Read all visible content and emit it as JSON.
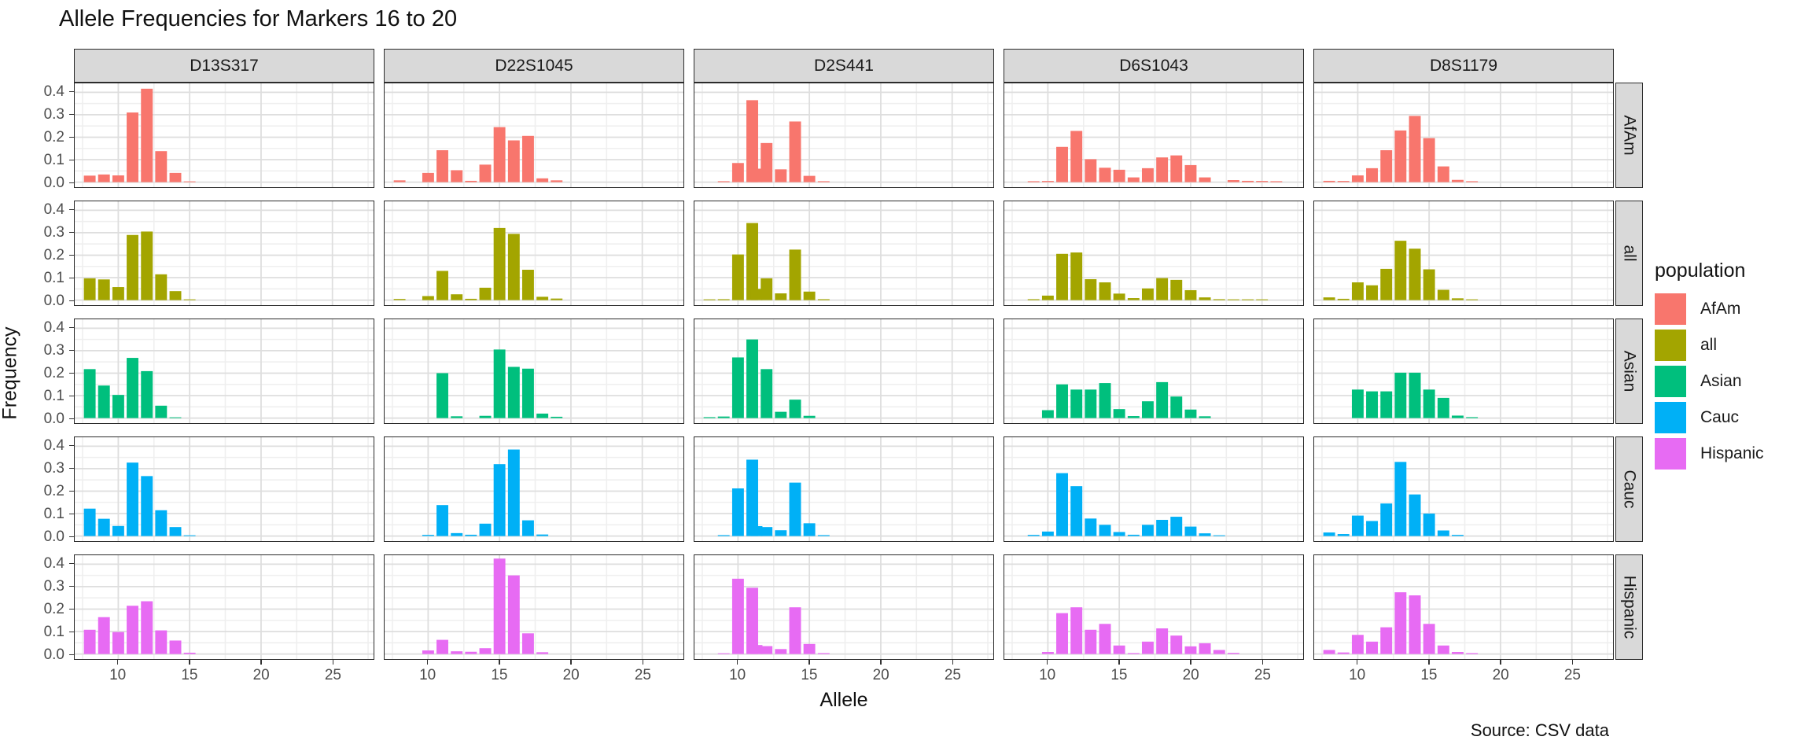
{
  "title": "Allele Frequencies for Markers 16 to 20",
  "source_note": "Source: CSV data",
  "axes": {
    "x_label": "Allele",
    "y_label": "Frequency",
    "x_ticks": [
      10,
      15,
      20,
      25
    ],
    "y_ticks": [
      "0.0",
      "0.1",
      "0.2",
      "0.3",
      "0.4"
    ],
    "y_tick_values": [
      0.0,
      0.1,
      0.2,
      0.3,
      0.4
    ]
  },
  "legend": {
    "title": "population",
    "entries": [
      {
        "label": "AfAm",
        "color": "#F8766D"
      },
      {
        "label": "all",
        "color": "#A3A500"
      },
      {
        "label": "Asian",
        "color": "#00BF7D"
      },
      {
        "label": "Cauc",
        "color": "#00B0F6"
      },
      {
        "label": "Hispanic",
        "color": "#E76BF3"
      }
    ]
  },
  "facets": {
    "columns": [
      "D13S317",
      "D22S1045",
      "D2S441",
      "D6S1043",
      "D8S1179"
    ],
    "rows": [
      "AfAm",
      "all",
      "Asian",
      "Cauc",
      "Hispanic"
    ]
  },
  "chart_data": {
    "type": "bar",
    "title": "Allele Frequencies for Markers 16 to 20",
    "xlabel": "Allele",
    "ylabel": "Frequency",
    "facet_columns_variable": "marker",
    "facet_rows_variable": "population",
    "x_domain": [
      6.95,
      27.88
    ],
    "ylim": [
      0,
      0.437
    ],
    "grid": "on",
    "legend_position": "right",
    "series": [
      {
        "marker": "D13S317",
        "population": "AfAm",
        "alleles": [
          8,
          9,
          10,
          11,
          12,
          13,
          14,
          15
        ],
        "frequencies": [
          0.029,
          0.034,
          0.03,
          0.31,
          0.416,
          0.138,
          0.041,
          0.003
        ]
      },
      {
        "marker": "D22S1045",
        "population": "AfAm",
        "alleles": [
          8,
          10,
          11,
          12,
          13,
          14,
          15,
          16,
          17,
          18,
          19
        ],
        "frequencies": [
          0.008,
          0.041,
          0.142,
          0.053,
          0.006,
          0.078,
          0.245,
          0.186,
          0.206,
          0.017,
          0.008
        ]
      },
      {
        "marker": "D2S441",
        "population": "AfAm",
        "alleles": [
          9,
          10,
          11,
          11.3,
          12,
          13,
          14,
          15,
          16
        ],
        "frequencies": [
          0.004,
          0.085,
          0.365,
          0.06,
          0.174,
          0.057,
          0.27,
          0.028,
          0.004
        ]
      },
      {
        "marker": "D6S1043",
        "population": "AfAm",
        "alleles": [
          9,
          10,
          11,
          12,
          13,
          14,
          15,
          16,
          17,
          18,
          19,
          20,
          21,
          23,
          24,
          25,
          26
        ],
        "frequencies": [
          0.004,
          0.005,
          0.157,
          0.228,
          0.102,
          0.064,
          0.055,
          0.021,
          0.062,
          0.11,
          0.119,
          0.076,
          0.021,
          0.009,
          0.006,
          0.005,
          0.004
        ]
      },
      {
        "marker": "D8S1179",
        "population": "AfAm",
        "alleles": [
          8,
          9,
          10,
          11,
          12,
          13,
          14,
          15,
          16,
          17,
          18
        ],
        "frequencies": [
          0.006,
          0.005,
          0.03,
          0.062,
          0.142,
          0.23,
          0.295,
          0.196,
          0.07,
          0.01,
          0.004
        ]
      },
      {
        "marker": "D13S317",
        "population": "all",
        "alleles": [
          8,
          9,
          10,
          11,
          12,
          13,
          14,
          15
        ],
        "frequencies": [
          0.097,
          0.092,
          0.058,
          0.29,
          0.305,
          0.115,
          0.04,
          0.003
        ]
      },
      {
        "marker": "D22S1045",
        "population": "all",
        "alleles": [
          8,
          10,
          11,
          12,
          13,
          14,
          15,
          16,
          17,
          18,
          19
        ],
        "frequencies": [
          0.005,
          0.018,
          0.13,
          0.026,
          0.006,
          0.055,
          0.321,
          0.295,
          0.135,
          0.015,
          0.007
        ]
      },
      {
        "marker": "D2S441",
        "population": "all",
        "alleles": [
          8,
          9,
          10,
          11,
          11.3,
          12,
          13,
          14,
          15,
          16
        ],
        "frequencies": [
          0.003,
          0.004,
          0.203,
          0.343,
          0.05,
          0.097,
          0.03,
          0.225,
          0.038,
          0.004
        ]
      },
      {
        "marker": "D6S1043",
        "population": "all",
        "alleles": [
          9,
          10,
          11,
          12,
          13,
          14,
          15,
          16,
          17,
          18,
          19,
          20,
          21,
          22,
          23,
          24,
          25
        ],
        "frequencies": [
          0.004,
          0.02,
          0.206,
          0.212,
          0.093,
          0.079,
          0.029,
          0.009,
          0.052,
          0.098,
          0.09,
          0.044,
          0.012,
          0.004,
          0.003,
          0.003,
          0.002
        ]
      },
      {
        "marker": "D8S1179",
        "population": "all",
        "alleles": [
          8,
          9,
          10,
          11,
          12,
          13,
          14,
          15,
          16,
          17,
          18
        ],
        "frequencies": [
          0.012,
          0.006,
          0.079,
          0.066,
          0.139,
          0.264,
          0.229,
          0.137,
          0.046,
          0.008,
          0.003
        ]
      },
      {
        "marker": "D13S317",
        "population": "Asian",
        "alleles": [
          8,
          9,
          10,
          11,
          12,
          13,
          14
        ],
        "frequencies": [
          0.218,
          0.145,
          0.103,
          0.268,
          0.209,
          0.055,
          0.003
        ]
      },
      {
        "marker": "D22S1045",
        "population": "Asian",
        "alleles": [
          11,
          12,
          14,
          15,
          16,
          17,
          18,
          19
        ],
        "frequencies": [
          0.2,
          0.008,
          0.01,
          0.305,
          0.228,
          0.22,
          0.02,
          0.006
        ]
      },
      {
        "marker": "D2S441",
        "population": "Asian",
        "alleles": [
          8,
          9,
          10,
          11,
          12,
          13,
          14,
          15
        ],
        "frequencies": [
          0.004,
          0.007,
          0.27,
          0.35,
          0.218,
          0.028,
          0.082,
          0.01
        ]
      },
      {
        "marker": "D6S1043",
        "population": "Asian",
        "alleles": [
          10,
          11,
          12,
          13,
          14,
          15,
          16,
          17,
          18,
          19,
          20,
          21
        ],
        "frequencies": [
          0.035,
          0.15,
          0.127,
          0.127,
          0.156,
          0.04,
          0.009,
          0.075,
          0.16,
          0.096,
          0.038,
          0.008
        ]
      },
      {
        "marker": "D8S1179",
        "population": "Asian",
        "alleles": [
          10,
          11,
          12,
          13,
          14,
          15,
          16,
          17,
          18
        ],
        "frequencies": [
          0.127,
          0.119,
          0.119,
          0.202,
          0.202,
          0.127,
          0.09,
          0.011,
          0.004
        ]
      },
      {
        "marker": "D13S317",
        "population": "Cauc",
        "alleles": [
          8,
          9,
          10,
          11,
          12,
          13,
          14,
          15
        ],
        "frequencies": [
          0.122,
          0.077,
          0.045,
          0.327,
          0.267,
          0.115,
          0.04,
          0.003
        ]
      },
      {
        "marker": "D22S1045",
        "population": "Cauc",
        "alleles": [
          10,
          11,
          12,
          13,
          14,
          15,
          16,
          17,
          18
        ],
        "frequencies": [
          0.005,
          0.138,
          0.013,
          0.006,
          0.055,
          0.32,
          0.385,
          0.07,
          0.007
        ]
      },
      {
        "marker": "D2S441",
        "population": "Cauc",
        "alleles": [
          9,
          10,
          11,
          11.3,
          12,
          13,
          14,
          15,
          16
        ],
        "frequencies": [
          0.004,
          0.212,
          0.34,
          0.044,
          0.04,
          0.026,
          0.238,
          0.057,
          0.004
        ]
      },
      {
        "marker": "D6S1043",
        "population": "Cauc",
        "alleles": [
          9,
          10,
          11,
          12,
          13,
          14,
          15,
          16,
          17,
          18,
          19,
          20,
          21,
          22
        ],
        "frequencies": [
          0.005,
          0.02,
          0.28,
          0.222,
          0.078,
          0.05,
          0.018,
          0.006,
          0.05,
          0.072,
          0.086,
          0.042,
          0.012,
          0.003
        ]
      },
      {
        "marker": "D8S1179",
        "population": "Cauc",
        "alleles": [
          8,
          9,
          10,
          11,
          12,
          13,
          14,
          15,
          16,
          17
        ],
        "frequencies": [
          0.016,
          0.009,
          0.091,
          0.067,
          0.145,
          0.33,
          0.185,
          0.1,
          0.025,
          0.005
        ]
      },
      {
        "marker": "D13S317",
        "population": "Hispanic",
        "alleles": [
          8,
          9,
          10,
          11,
          12,
          13,
          14,
          15
        ],
        "frequencies": [
          0.108,
          0.164,
          0.098,
          0.215,
          0.235,
          0.105,
          0.06,
          0.006
        ]
      },
      {
        "marker": "D22S1045",
        "population": "Hispanic",
        "alleles": [
          10,
          11,
          12,
          13,
          14,
          15,
          16,
          17,
          18
        ],
        "frequencies": [
          0.016,
          0.063,
          0.012,
          0.01,
          0.026,
          0.425,
          0.35,
          0.092,
          0.008
        ]
      },
      {
        "marker": "D2S441",
        "population": "Hispanic",
        "alleles": [
          9,
          10,
          11,
          11.3,
          12,
          13,
          14,
          15,
          16
        ],
        "frequencies": [
          0.003,
          0.335,
          0.295,
          0.04,
          0.035,
          0.022,
          0.208,
          0.045,
          0.004
        ]
      },
      {
        "marker": "D6S1043",
        "population": "Hispanic",
        "alleles": [
          10,
          11,
          12,
          13,
          14,
          15,
          16,
          17,
          18,
          19,
          20,
          21,
          22,
          23
        ],
        "frequencies": [
          0.009,
          0.182,
          0.208,
          0.108,
          0.134,
          0.038,
          0.004,
          0.055,
          0.114,
          0.082,
          0.034,
          0.048,
          0.018,
          0.005
        ]
      },
      {
        "marker": "D8S1179",
        "population": "Hispanic",
        "alleles": [
          8,
          9,
          10,
          11,
          12,
          13,
          14,
          15,
          16,
          17,
          18
        ],
        "frequencies": [
          0.018,
          0.007,
          0.085,
          0.055,
          0.119,
          0.275,
          0.261,
          0.134,
          0.038,
          0.009,
          0.004
        ]
      }
    ]
  },
  "style": {
    "strip_background": "#d9d9d9",
    "panel_border": "#2b2b2b",
    "grid_major": "#dedede",
    "grid_minor": "#efefef",
    "tick_label_color": "#4d4d4d"
  }
}
